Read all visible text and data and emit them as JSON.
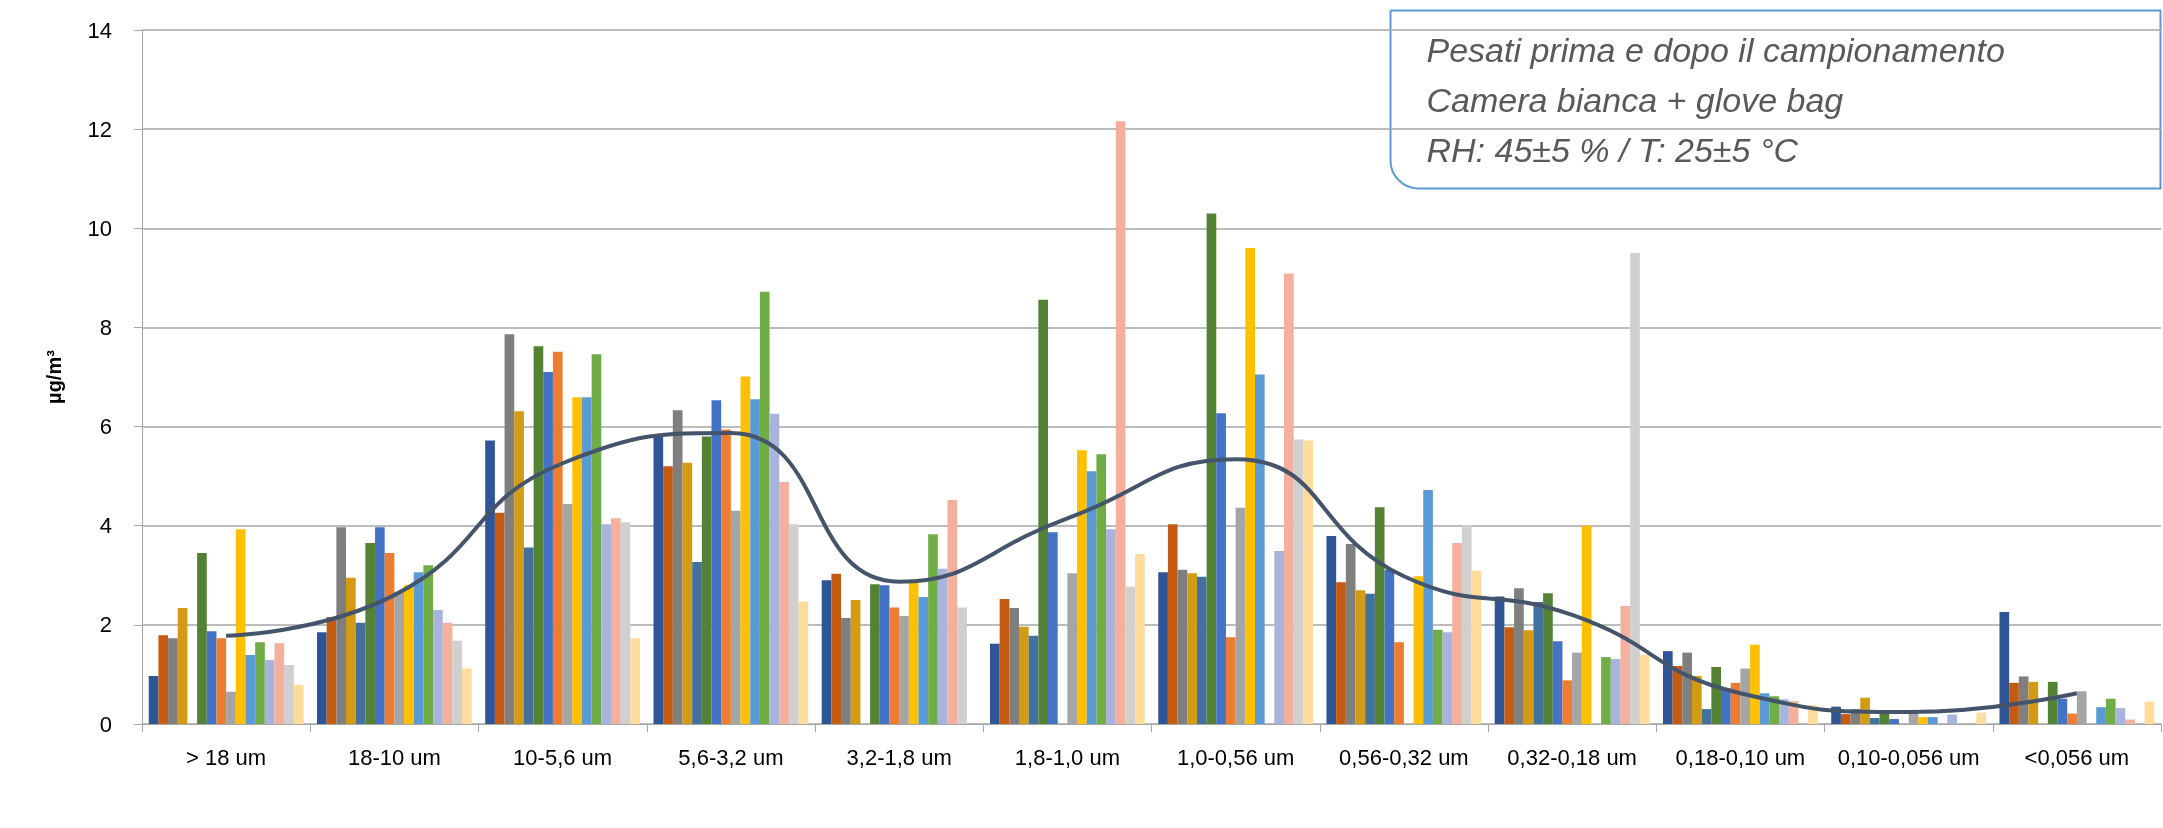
{
  "chart_data": {
    "type": "bar",
    "ylabel": "µg/m³",
    "categories": [
      "> 18 um",
      "18-10 um",
      "10-5,6 um",
      "5,6-3,2 um",
      "3,2-1,8 um",
      "1,8-1,0 um",
      "1,0-0,56 um",
      "0,56-0,32 um",
      "0,32-0,18 um",
      "0,18-0,10 um",
      "0,10-0,056 um",
      "<0,056 um"
    ],
    "series": [
      {
        "color": "#2f5597",
        "values": [
          0.97,
          1.85,
          5.72,
          5.83,
          2.9,
          1.62,
          3.06,
          3.79,
          2.57,
          1.47,
          0.35,
          2.26
        ]
      },
      {
        "color": "#c55a11",
        "values": [
          1.79,
          2.16,
          4.26,
          5.2,
          3.03,
          2.52,
          4.03,
          2.86,
          1.95,
          1.17,
          0.2,
          0.83
        ]
      },
      {
        "color": "#7f7f7f",
        "values": [
          1.73,
          3.97,
          7.86,
          6.33,
          2.14,
          2.34,
          3.11,
          3.63,
          2.74,
          1.44,
          0.3,
          0.96
        ]
      },
      {
        "color": "#d49a12",
        "values": [
          2.34,
          2.95,
          6.31,
          5.27,
          2.5,
          1.96,
          3.04,
          2.7,
          1.89,
          0.97,
          0.53,
          0.85
        ]
      },
      {
        "color": "#41719c",
        "values": [
          null,
          2.04,
          3.56,
          3.27,
          null,
          1.78,
          2.97,
          2.63,
          2.46,
          0.3,
          0.12,
          null
        ]
      },
      {
        "color": "#548235",
        "values": [
          3.45,
          3.65,
          7.62,
          5.8,
          2.82,
          8.56,
          10.3,
          4.37,
          2.64,
          1.15,
          0.27,
          0.85
        ]
      },
      {
        "color": "#4472c4",
        "values": [
          1.87,
          3.97,
          7.1,
          6.53,
          2.8,
          3.87,
          6.27,
          3.11,
          1.67,
          0.72,
          0.1,
          0.51
        ]
      },
      {
        "color": "#ed7d31",
        "values": [
          1.73,
          3.45,
          7.51,
          5.94,
          2.35,
          null,
          1.75,
          1.65,
          0.88,
          0.83,
          null,
          0.21
        ]
      },
      {
        "color": "#a5a5a5",
        "values": [
          0.65,
          2.67,
          4.44,
          4.3,
          2.18,
          3.04,
          4.36,
          null,
          1.44,
          1.12,
          0.25,
          0.66
        ]
      },
      {
        "color": "#ffc000",
        "values": [
          3.93,
          2.8,
          6.59,
          7.01,
          2.9,
          5.52,
          9.6,
          2.98,
          4.0,
          1.6,
          0.14,
          null
        ]
      },
      {
        "color": "#5b9bd5",
        "values": [
          1.39,
          3.06,
          6.59,
          6.55,
          2.56,
          5.1,
          7.05,
          4.72,
          null,
          0.62,
          0.14,
          0.34
        ]
      },
      {
        "color": "#70ad47",
        "values": [
          1.65,
          3.2,
          7.46,
          8.72,
          3.83,
          5.44,
          null,
          1.9,
          1.35,
          0.56,
          null,
          0.51
        ]
      },
      {
        "color": "#a9b4de",
        "values": [
          1.29,
          2.3,
          4.03,
          6.26,
          3.13,
          3.93,
          3.49,
          1.85,
          1.31,
          0.5,
          0.19,
          0.32
        ]
      },
      {
        "color": "#f4b09c",
        "values": [
          1.63,
          2.04,
          4.15,
          4.88,
          4.52,
          12.16,
          9.09,
          3.65,
          2.38,
          0.46,
          null,
          0.09
        ]
      },
      {
        "color": "#d0d0d0",
        "values": [
          1.19,
          1.68,
          4.07,
          4.03,
          2.35,
          2.77,
          5.74,
          4.01,
          9.5,
          null,
          null,
          null
        ]
      },
      {
        "color": "#ffdb9c",
        "values": [
          0.79,
          1.12,
          1.73,
          2.47,
          null,
          3.43,
          5.72,
          3.09,
          1.39,
          0.38,
          0.23,
          0.45
        ]
      },
      {
        "type": "line",
        "color": "#44546a",
        "values": [
          1.78,
          2.6,
          5.26,
          5.87,
          2.87,
          4.15,
          5.34,
          2.98,
          2.2,
          0.62,
          0.24,
          0.62
        ]
      }
    ],
    "ylim": [
      0,
      14
    ],
    "yticks": [
      0,
      2,
      4,
      6,
      8,
      10,
      12,
      14
    ],
    "grid": "y",
    "annotations": [
      "Pesati prima e dopo il campionamento",
      "Camera bianca + glove bag",
      "RH: 45±5 % / T: 25±5 °C"
    ]
  }
}
